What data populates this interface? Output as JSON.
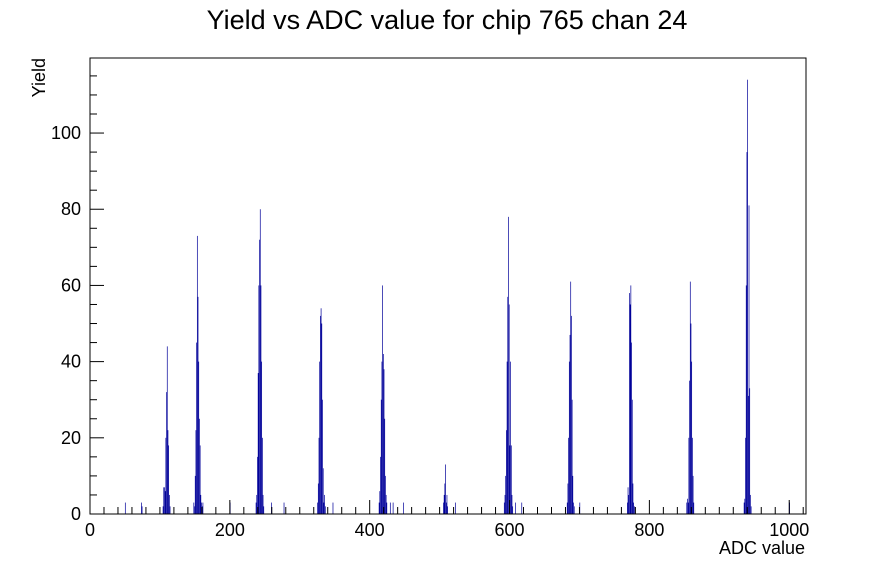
{
  "chart_data": {
    "type": "bar",
    "title": "Yield vs ADC value for chip 765 chan 24",
    "xlabel": "ADC value",
    "ylabel": "Yield",
    "xlim": [
      0,
      1024
    ],
    "ylim": [
      0,
      119.7
    ],
    "x_ticks": [
      0,
      200,
      400,
      600,
      800,
      1000
    ],
    "y_ticks": [
      0,
      20,
      40,
      60,
      80,
      100
    ],
    "grid": false,
    "legend": "none",
    "series": [
      {
        "color": "#000099",
        "points": [
          {
            "x": 50,
            "y": 3
          },
          {
            "x": 73,
            "y": 3
          },
          {
            "x": 74,
            "y": 2
          },
          {
            "x": 104,
            "y": 2
          },
          {
            "x": 105,
            "y": 7
          },
          {
            "x": 106,
            "y": 7
          },
          {
            "x": 107,
            "y": 6
          },
          {
            "x": 108,
            "y": 20
          },
          {
            "x": 109,
            "y": 32
          },
          {
            "x": 110,
            "y": 44
          },
          {
            "x": 111,
            "y": 22
          },
          {
            "x": 112,
            "y": 18
          },
          {
            "x": 113,
            "y": 5
          },
          {
            "x": 114,
            "y": 2
          },
          {
            "x": 148,
            "y": 3
          },
          {
            "x": 149,
            "y": 2
          },
          {
            "x": 150,
            "y": 10
          },
          {
            "x": 151,
            "y": 22
          },
          {
            "x": 152,
            "y": 45
          },
          {
            "x": 153,
            "y": 73
          },
          {
            "x": 154,
            "y": 57
          },
          {
            "x": 155,
            "y": 40
          },
          {
            "x": 156,
            "y": 25
          },
          {
            "x": 157,
            "y": 18
          },
          {
            "x": 158,
            "y": 5
          },
          {
            "x": 159,
            "y": 3
          },
          {
            "x": 160,
            "y": 2
          },
          {
            "x": 161,
            "y": 3
          },
          {
            "x": 200,
            "y": 3
          },
          {
            "x": 237,
            "y": 3
          },
          {
            "x": 238,
            "y": 5
          },
          {
            "x": 239,
            "y": 15
          },
          {
            "x": 240,
            "y": 37
          },
          {
            "x": 241,
            "y": 60
          },
          {
            "x": 242,
            "y": 72
          },
          {
            "x": 243,
            "y": 80
          },
          {
            "x": 244,
            "y": 60
          },
          {
            "x": 245,
            "y": 40
          },
          {
            "x": 246,
            "y": 20
          },
          {
            "x": 247,
            "y": 5
          },
          {
            "x": 248,
            "y": 2
          },
          {
            "x": 259,
            "y": 3
          },
          {
            "x": 277,
            "y": 3
          },
          {
            "x": 325,
            "y": 3
          },
          {
            "x": 326,
            "y": 8
          },
          {
            "x": 327,
            "y": 20
          },
          {
            "x": 328,
            "y": 40
          },
          {
            "x": 329,
            "y": 52
          },
          {
            "x": 330,
            "y": 54
          },
          {
            "x": 331,
            "y": 50
          },
          {
            "x": 332,
            "y": 30
          },
          {
            "x": 333,
            "y": 12
          },
          {
            "x": 334,
            "y": 3
          },
          {
            "x": 335,
            "y": 5
          },
          {
            "x": 336,
            "y": 2
          },
          {
            "x": 347,
            "y": 3
          },
          {
            "x": 413,
            "y": 3
          },
          {
            "x": 414,
            "y": 6
          },
          {
            "x": 415,
            "y": 15
          },
          {
            "x": 416,
            "y": 30
          },
          {
            "x": 417,
            "y": 40
          },
          {
            "x": 418,
            "y": 60
          },
          {
            "x": 419,
            "y": 42
          },
          {
            "x": 420,
            "y": 38
          },
          {
            "x": 421,
            "y": 25
          },
          {
            "x": 422,
            "y": 10
          },
          {
            "x": 423,
            "y": 5
          },
          {
            "x": 424,
            "y": 3
          },
          {
            "x": 429,
            "y": 3
          },
          {
            "x": 433,
            "y": 3
          },
          {
            "x": 448,
            "y": 3
          },
          {
            "x": 505,
            "y": 3
          },
          {
            "x": 506,
            "y": 5
          },
          {
            "x": 507,
            "y": 8
          },
          {
            "x": 508,
            "y": 13
          },
          {
            "x": 509,
            "y": 3
          },
          {
            "x": 510,
            "y": 5
          },
          {
            "x": 511,
            "y": 2
          },
          {
            "x": 522,
            "y": 3
          },
          {
            "x": 592,
            "y": 3
          },
          {
            "x": 593,
            "y": 5
          },
          {
            "x": 594,
            "y": 10
          },
          {
            "x": 595,
            "y": 22
          },
          {
            "x": 596,
            "y": 40
          },
          {
            "x": 597,
            "y": 57
          },
          {
            "x": 598,
            "y": 78
          },
          {
            "x": 599,
            "y": 55
          },
          {
            "x": 600,
            "y": 18
          },
          {
            "x": 601,
            "y": 40
          },
          {
            "x": 602,
            "y": 18
          },
          {
            "x": 603,
            "y": 5
          },
          {
            "x": 604,
            "y": 2
          },
          {
            "x": 608,
            "y": 3
          },
          {
            "x": 617,
            "y": 3
          },
          {
            "x": 682,
            "y": 3
          },
          {
            "x": 683,
            "y": 8
          },
          {
            "x": 684,
            "y": 20
          },
          {
            "x": 685,
            "y": 40
          },
          {
            "x": 686,
            "y": 47
          },
          {
            "x": 687,
            "y": 61
          },
          {
            "x": 688,
            "y": 52
          },
          {
            "x": 689,
            "y": 30
          },
          {
            "x": 690,
            "y": 10
          },
          {
            "x": 691,
            "y": 3
          },
          {
            "x": 692,
            "y": 2
          },
          {
            "x": 700,
            "y": 3
          },
          {
            "x": 768,
            "y": 3
          },
          {
            "x": 769,
            "y": 7
          },
          {
            "x": 770,
            "y": 5
          },
          {
            "x": 771,
            "y": 58
          },
          {
            "x": 772,
            "y": 55
          },
          {
            "x": 773,
            "y": 60
          },
          {
            "x": 774,
            "y": 45
          },
          {
            "x": 775,
            "y": 30
          },
          {
            "x": 776,
            "y": 8
          },
          {
            "x": 777,
            "y": 3
          },
          {
            "x": 778,
            "y": 2
          },
          {
            "x": 853,
            "y": 3
          },
          {
            "x": 854,
            "y": 4
          },
          {
            "x": 855,
            "y": 3
          },
          {
            "x": 856,
            "y": 20
          },
          {
            "x": 857,
            "y": 35
          },
          {
            "x": 858,
            "y": 61
          },
          {
            "x": 859,
            "y": 50
          },
          {
            "x": 860,
            "y": 40
          },
          {
            "x": 861,
            "y": 20
          },
          {
            "x": 862,
            "y": 10
          },
          {
            "x": 863,
            "y": 3
          },
          {
            "x": 935,
            "y": 3
          },
          {
            "x": 936,
            "y": 4
          },
          {
            "x": 937,
            "y": 20
          },
          {
            "x": 938,
            "y": 60
          },
          {
            "x": 939,
            "y": 95
          },
          {
            "x": 940,
            "y": 114
          },
          {
            "x": 941,
            "y": 31
          },
          {
            "x": 942,
            "y": 81
          },
          {
            "x": 943,
            "y": 33
          },
          {
            "x": 944,
            "y": 5
          },
          {
            "x": 945,
            "y": 2
          },
          {
            "x": 1000,
            "y": 3
          }
        ]
      }
    ]
  }
}
